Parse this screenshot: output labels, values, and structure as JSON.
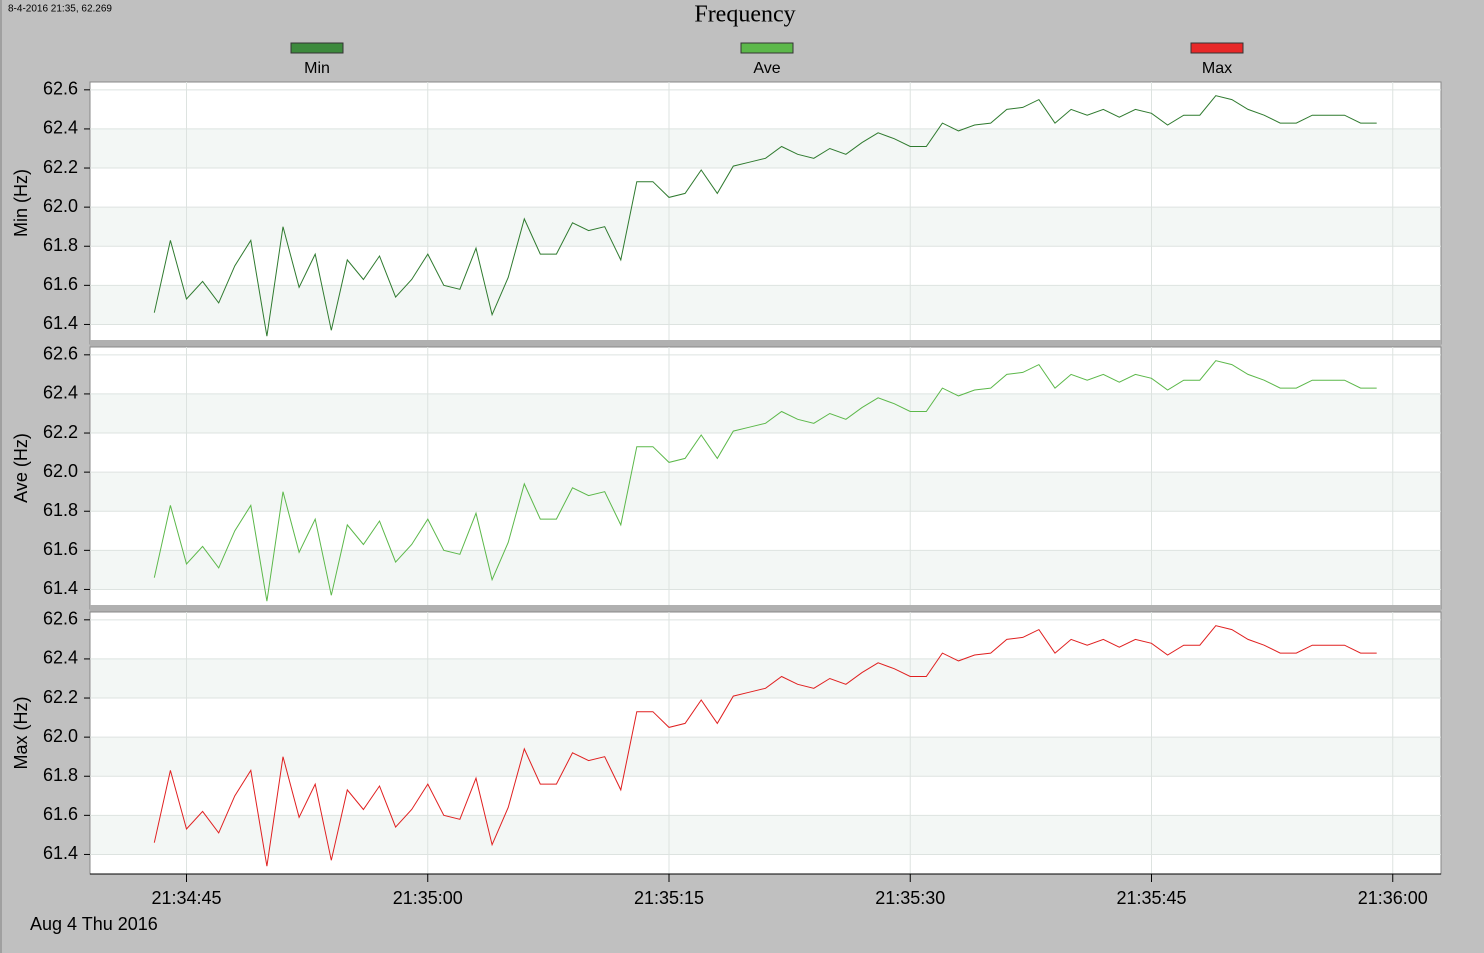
{
  "chart_data": {
    "type": "line",
    "title": "Frequency",
    "header": "8-4-2016 21:35, 62.269",
    "date_label": "Aug 4 Thu 2016",
    "x": [
      "21:34:43",
      "21:34:44",
      "21:34:45",
      "21:34:46",
      "21:34:47",
      "21:34:48",
      "21:34:49",
      "21:34:50",
      "21:34:51",
      "21:34:52",
      "21:34:53",
      "21:34:54",
      "21:34:55",
      "21:34:56",
      "21:34:57",
      "21:34:58",
      "21:34:59",
      "21:35:00",
      "21:35:01",
      "21:35:02",
      "21:35:03",
      "21:35:04",
      "21:35:05",
      "21:35:06",
      "21:35:07",
      "21:35:08",
      "21:35:09",
      "21:35:10",
      "21:35:11",
      "21:35:12",
      "21:35:13",
      "21:35:14",
      "21:35:15",
      "21:35:16",
      "21:35:17",
      "21:35:18",
      "21:35:19",
      "21:35:20",
      "21:35:21",
      "21:35:22",
      "21:35:23",
      "21:35:24",
      "21:35:25",
      "21:35:26",
      "21:35:27",
      "21:35:28",
      "21:35:29",
      "21:35:30",
      "21:35:31",
      "21:35:32",
      "21:35:33",
      "21:35:34",
      "21:35:35",
      "21:35:36",
      "21:35:37",
      "21:35:38",
      "21:35:39",
      "21:35:40",
      "21:35:41",
      "21:35:42",
      "21:35:43",
      "21:35:44",
      "21:35:45",
      "21:35:46",
      "21:35:47",
      "21:35:48",
      "21:35:49",
      "21:35:50",
      "21:35:51",
      "21:35:52",
      "21:35:53",
      "21:35:54",
      "21:35:55",
      "21:35:56",
      "21:35:57",
      "21:35:58",
      "21:35:59"
    ],
    "xlim": [
      "21:34:39",
      "21:36:03"
    ],
    "xticks": [
      "21:34:45",
      "21:35:00",
      "21:35:15",
      "21:35:30",
      "21:35:45",
      "21:36:00"
    ],
    "grid": true,
    "series": [
      {
        "name": "Min",
        "y_label": "Min (Hz)",
        "color": "#2f7a2f",
        "legend_color": "#3d8a3d",
        "ylim": [
          61.3,
          62.64
        ],
        "yticks": [
          61.4,
          61.6,
          61.8,
          {
            "value": 62,
            "label": "62.0"
          },
          62.2,
          62.4,
          62.6
        ],
        "values": [
          61.46,
          61.83,
          61.53,
          61.62,
          61.51,
          61.7,
          61.83,
          61.34,
          61.9,
          61.59,
          61.76,
          61.37,
          61.73,
          61.63,
          61.75,
          61.54,
          61.63,
          61.76,
          61.6,
          61.58,
          61.79,
          61.45,
          61.64,
          61.94,
          61.76,
          61.76,
          61.92,
          61.88,
          61.9,
          61.73,
          62.13,
          62.13,
          62.05,
          62.07,
          62.19,
          62.07,
          62.21,
          62.23,
          62.25,
          62.31,
          62.27,
          62.25,
          62.3,
          62.27,
          62.33,
          62.38,
          62.35,
          62.31,
          62.31,
          62.43,
          62.39,
          62.42,
          62.43,
          62.5,
          62.51,
          62.55,
          62.43,
          62.5,
          62.47,
          62.5,
          62.46,
          62.5,
          62.48,
          62.42,
          62.47,
          62.47,
          62.57,
          62.55,
          62.5,
          62.47,
          62.43,
          62.43,
          62.47,
          62.47,
          62.47,
          62.43,
          62.43
        ]
      },
      {
        "name": "Ave",
        "y_label": "Ave (Hz)",
        "color": "#5cb84a",
        "legend_color": "#5cb84a",
        "ylim": [
          61.3,
          62.64
        ],
        "yticks": [
          61.4,
          61.6,
          61.8,
          {
            "value": 62,
            "label": "62.0"
          },
          62.2,
          62.4,
          62.6
        ],
        "values": [
          61.46,
          61.83,
          61.53,
          61.62,
          61.51,
          61.7,
          61.83,
          61.34,
          61.9,
          61.59,
          61.76,
          61.37,
          61.73,
          61.63,
          61.75,
          61.54,
          61.63,
          61.76,
          61.6,
          61.58,
          61.79,
          61.45,
          61.64,
          61.94,
          61.76,
          61.76,
          61.92,
          61.88,
          61.9,
          61.73,
          62.13,
          62.13,
          62.05,
          62.07,
          62.19,
          62.07,
          62.21,
          62.23,
          62.25,
          62.31,
          62.27,
          62.25,
          62.3,
          62.27,
          62.33,
          62.38,
          62.35,
          62.31,
          62.31,
          62.43,
          62.39,
          62.42,
          62.43,
          62.5,
          62.51,
          62.55,
          62.43,
          62.5,
          62.47,
          62.5,
          62.46,
          62.5,
          62.48,
          62.42,
          62.47,
          62.47,
          62.57,
          62.55,
          62.5,
          62.47,
          62.43,
          62.43,
          62.47,
          62.47,
          62.47,
          62.43,
          62.43
        ]
      },
      {
        "name": "Max",
        "y_label": "Max (Hz)",
        "color": "#e02020",
        "legend_color": "#e82828",
        "ylim": [
          61.3,
          62.64
        ],
        "yticks": [
          61.4,
          61.6,
          61.8,
          {
            "value": 62,
            "label": "62.0"
          },
          62.2,
          62.4,
          62.6
        ],
        "values": [
          61.46,
          61.83,
          61.53,
          61.62,
          61.51,
          61.7,
          61.83,
          61.34,
          61.9,
          61.59,
          61.76,
          61.37,
          61.73,
          61.63,
          61.75,
          61.54,
          61.63,
          61.76,
          61.6,
          61.58,
          61.79,
          61.45,
          61.64,
          61.94,
          61.76,
          61.76,
          61.92,
          61.88,
          61.9,
          61.73,
          62.13,
          62.13,
          62.05,
          62.07,
          62.19,
          62.07,
          62.21,
          62.23,
          62.25,
          62.31,
          62.27,
          62.25,
          62.3,
          62.27,
          62.33,
          62.38,
          62.35,
          62.31,
          62.31,
          62.43,
          62.39,
          62.42,
          62.43,
          62.5,
          62.51,
          62.55,
          62.43,
          62.5,
          62.47,
          62.5,
          62.46,
          62.5,
          62.48,
          62.42,
          62.47,
          62.47,
          62.57,
          62.55,
          62.5,
          62.47,
          62.43,
          62.43,
          62.47,
          62.47,
          62.47,
          62.43,
          62.43
        ]
      }
    ]
  }
}
